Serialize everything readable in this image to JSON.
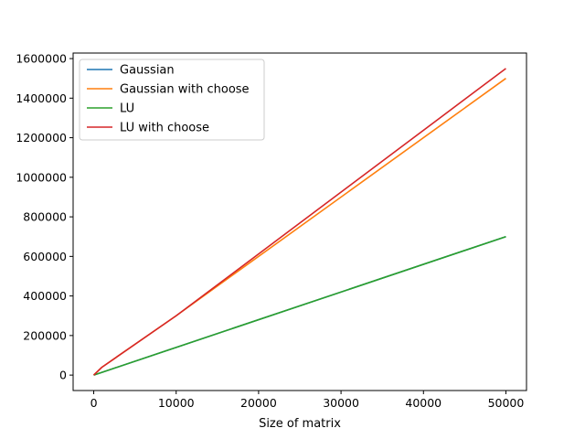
{
  "chart_data": {
    "type": "line",
    "title": "",
    "xlabel": "Size of matrix",
    "ylabel": "",
    "xlim": [
      -2500,
      52500
    ],
    "ylim": [
      -78000,
      1628000
    ],
    "xticks": [
      0,
      10000,
      20000,
      30000,
      40000,
      50000
    ],
    "xtick_labels": [
      "0",
      "10000",
      "20000",
      "30000",
      "40000",
      "50000"
    ],
    "yticks": [
      0,
      200000,
      400000,
      600000,
      800000,
      1000000,
      1200000,
      1400000,
      1600000
    ],
    "ytick_labels": [
      "0",
      "200000",
      "400000",
      "600000",
      "800000",
      "1000000",
      "1200000",
      "1400000",
      "1600000"
    ],
    "grid": false,
    "legend_position": "top-left",
    "series": [
      {
        "name": "Gaussian",
        "color": "#1f77b4",
        "x": [
          0,
          1000,
          10000,
          50000
        ],
        "y": [
          0,
          14000,
          140000,
          700000
        ]
      },
      {
        "name": "Gaussian with choose",
        "color": "#ff7f0e",
        "x": [
          0,
          1000,
          10000,
          50000
        ],
        "y": [
          0,
          40000,
          300000,
          1500000
        ]
      },
      {
        "name": "LU",
        "color": "#2ca02c",
        "x": [
          0,
          1000,
          10000,
          50000
        ],
        "y": [
          0,
          14000,
          140000,
          700000
        ]
      },
      {
        "name": "LU with choose",
        "color": "#d62728",
        "x": [
          0,
          1000,
          10000,
          50000
        ],
        "y": [
          0,
          40000,
          300000,
          1550000
        ]
      }
    ]
  }
}
